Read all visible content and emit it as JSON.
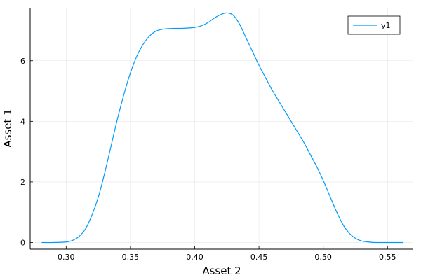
{
  "chart_data": {
    "type": "line",
    "title": "",
    "xlabel": "Asset 2",
    "ylabel": "Asset 1",
    "xlim": [
      0.272,
      0.5695
    ],
    "ylim": [
      -0.22,
      7.75
    ],
    "xticks": [
      0.3,
      0.35,
      0.4,
      0.45,
      0.5,
      0.55
    ],
    "xtick_labels": [
      "0.30",
      "0.35",
      "0.40",
      "0.45",
      "0.50",
      "0.55"
    ],
    "yticks": [
      0,
      2,
      4,
      6
    ],
    "ytick_labels": [
      "0",
      "2",
      "4",
      "6"
    ],
    "grid": true,
    "legend": {
      "position": "top-right",
      "entries": [
        "y1"
      ]
    },
    "series": [
      {
        "name": "y1",
        "color": "#009AFA",
        "x": [
          0.281,
          0.29,
          0.3,
          0.305,
          0.31,
          0.315,
          0.32,
          0.325,
          0.33,
          0.335,
          0.34,
          0.345,
          0.35,
          0.355,
          0.36,
          0.365,
          0.37,
          0.375,
          0.38,
          0.385,
          0.39,
          0.395,
          0.4,
          0.405,
          0.41,
          0.415,
          0.42,
          0.425,
          0.43,
          0.435,
          0.44,
          0.445,
          0.45,
          0.455,
          0.46,
          0.465,
          0.47,
          0.475,
          0.48,
          0.485,
          0.49,
          0.495,
          0.5,
          0.505,
          0.51,
          0.515,
          0.52,
          0.525,
          0.53,
          0.535,
          0.54,
          0.55,
          0.562
        ],
        "y": [
          0.0,
          0.0,
          0.02,
          0.07,
          0.2,
          0.45,
          0.9,
          1.5,
          2.3,
          3.2,
          4.1,
          4.9,
          5.6,
          6.15,
          6.55,
          6.82,
          6.98,
          7.04,
          7.06,
          7.07,
          7.07,
          7.08,
          7.1,
          7.15,
          7.25,
          7.4,
          7.52,
          7.58,
          7.5,
          7.2,
          6.75,
          6.3,
          5.85,
          5.45,
          5.05,
          4.7,
          4.35,
          4.0,
          3.65,
          3.3,
          2.9,
          2.5,
          2.05,
          1.55,
          1.05,
          0.62,
          0.32,
          0.14,
          0.05,
          0.02,
          0.0,
          0.0,
          0.0
        ]
      }
    ]
  }
}
